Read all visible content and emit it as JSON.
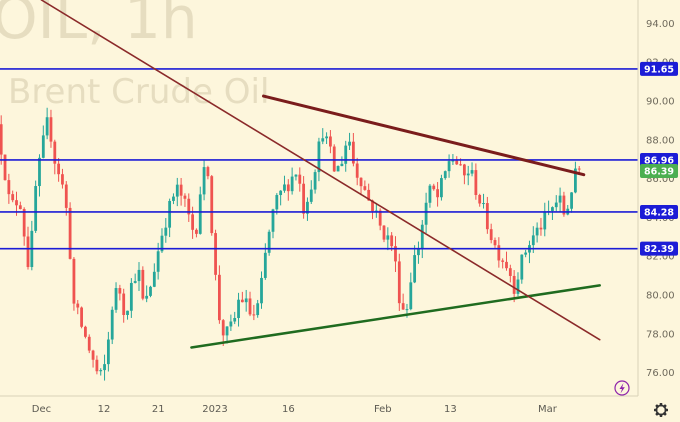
{
  "watermark": {
    "symbol": "OIL, 1h",
    "name": "Brent Crude Oil"
  },
  "colors": {
    "background": "#fdf6dc",
    "up": "#26a69a",
    "down": "#ef5350",
    "level_line": "#1c1cd6",
    "resistance_line": "#7a1c1c",
    "support_line": "#1f6b1f",
    "diag_line": "#8b2a2a",
    "last_price_badge": "#4caf50",
    "level_badge": "#1c1cd6"
  },
  "chart_data": {
    "type": "candlestick",
    "y_axis": {
      "range": [
        74.8,
        95.2
      ],
      "ticks": [
        "94.00",
        "92.00",
        "90.00",
        "88.00",
        "86.00",
        "84.00",
        "82.00",
        "80.00",
        "78.00",
        "76.00"
      ]
    },
    "x_axis": {
      "range": [
        0,
        100
      ],
      "ticks": [
        {
          "label": "Dec",
          "x": 6.5
        },
        {
          "label": "12",
          "x": 16.3
        },
        {
          "label": "21",
          "x": 24.8
        },
        {
          "label": "2023",
          "x": 33.7
        },
        {
          "label": "16",
          "x": 45.2
        },
        {
          "label": "Feb",
          "x": 60.0
        },
        {
          "label": "13",
          "x": 70.6
        },
        {
          "label": "Mar",
          "x": 85.8
        }
      ]
    },
    "horizontal_levels": [
      {
        "label": "91.65",
        "value": 91.65
      },
      {
        "label": "86.96",
        "value": 86.96
      },
      {
        "label": "84.28",
        "value": 84.28
      },
      {
        "label": "82.39",
        "value": 82.39
      }
    ],
    "last_price": {
      "label": "86.39",
      "value": 86.39
    },
    "trendlines": [
      {
        "name": "resistance",
        "x": [
          41.3,
          91.5
        ],
        "y": [
          90.25,
          86.2
        ]
      },
      {
        "name": "support",
        "x": [
          30.0,
          94.0
        ],
        "y": [
          77.3,
          80.5
        ]
      },
      {
        "name": "diagonal",
        "x": [
          6.5,
          94.0
        ],
        "y": [
          95.2,
          77.7
        ]
      }
    ],
    "price_path": {
      "x": [
        0,
        1.0,
        2.0,
        3.5,
        5.0,
        6.0,
        7.0,
        8.0,
        9.0,
        10.0,
        11.0,
        12.0,
        13.0,
        14.0,
        15.0,
        16.0,
        17.0,
        18.0,
        19.0,
        20.0,
        21.0,
        22.0,
        23.0,
        24.0,
        25.0,
        26.0,
        27.0,
        28.0,
        29.0,
        30.0,
        31.0,
        32.0,
        33.0,
        34.0,
        35.0,
        36.0,
        37.0,
        38.0,
        39.0,
        40.0,
        41.0,
        42.0,
        43.0,
        44.0,
        45.0,
        46.0,
        47.0,
        48.0,
        49.0,
        50.0,
        51.0,
        52.0,
        53.0,
        54.0,
        55.0,
        56.0,
        57.0,
        58.0,
        59.0,
        60.0,
        61.0,
        62.0,
        63.0,
        64.0,
        65.0,
        66.0,
        67.0,
        68.0,
        69.0,
        70.0,
        71.0,
        72.0,
        73.0,
        74.0,
        75.0,
        76.0,
        77.0,
        78.0,
        79.0,
        80.0,
        81.0,
        82.0,
        83.0,
        84.0,
        85.0,
        86.0,
        87.0,
        88.0,
        89.0,
        90.0,
        91.0
      ],
      "y": [
        88.8,
        86.8,
        84.5,
        85.0,
        81.2,
        85.5,
        87.5,
        89.1,
        87.0,
        86.0,
        84.0,
        79.5,
        78.6,
        77.6,
        76.6,
        75.6,
        76.5,
        79.5,
        80.5,
        79.0,
        80.5,
        81.5,
        79.2,
        80.5,
        82.0,
        83.5,
        84.5,
        85.5,
        85.0,
        84.0,
        83.0,
        86.0,
        86.5,
        81.5,
        78.2,
        78.0,
        78.5,
        80.0,
        79.5,
        78.8,
        79.5,
        82.0,
        84.0,
        85.0,
        85.5,
        86.0,
        86.5,
        84.5,
        85.5,
        87.0,
        88.5,
        87.5,
        86.2,
        87.0,
        88.3,
        86.5,
        86.0,
        85.0,
        84.5,
        83.5,
        83.0,
        82.5,
        80.0,
        78.9,
        81.5,
        82.5,
        84.5,
        85.5,
        85.0,
        86.0,
        87.2,
        86.8,
        86.0,
        86.5,
        85.5,
        84.5,
        83.5,
        82.5,
        82.0,
        81.5,
        80.5,
        81.5,
        82.5,
        83.0,
        83.5,
        84.0,
        84.5,
        85.0,
        84.0,
        85.5,
        86.5
      ]
    }
  }
}
